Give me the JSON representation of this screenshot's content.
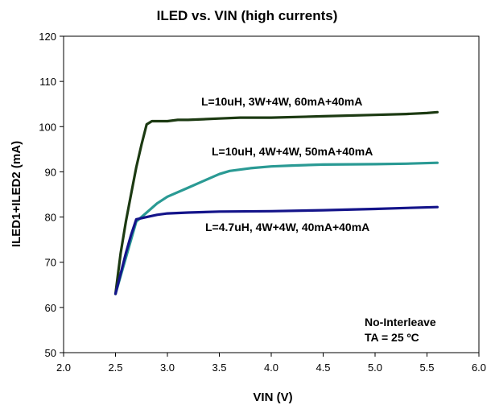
{
  "chart_data": {
    "type": "line",
    "title": "ILED vs. VIN (high currents)",
    "xlabel": "VIN (V)",
    "ylabel": "ILED1+ILED2 (mA)",
    "xlim": [
      2.0,
      6.0
    ],
    "ylim": [
      50,
      120
    ],
    "xticks": [
      "2.0",
      "2.5",
      "3.0",
      "3.5",
      "4.0",
      "4.5",
      "5.0",
      "5.5",
      "6.0"
    ],
    "yticks": [
      "50",
      "60",
      "70",
      "80",
      "90",
      "100",
      "110",
      "120"
    ],
    "grid": false,
    "series": [
      {
        "name": "L=10uH, 3W+4W, 60mA+40mA",
        "color": "#1c3a12",
        "x": [
          2.5,
          2.55,
          2.6,
          2.65,
          2.7,
          2.75,
          2.8,
          2.85,
          2.9,
          3.0,
          3.1,
          3.2,
          3.5,
          3.7,
          4.0,
          4.5,
          5.0,
          5.3,
          5.5,
          5.6
        ],
        "y": [
          63,
          72,
          79,
          85,
          91,
          96,
          100.5,
          101.2,
          101.2,
          101.2,
          101.5,
          101.5,
          101.8,
          102,
          102,
          102.3,
          102.6,
          102.8,
          103,
          103.2
        ]
      },
      {
        "name": "L=10uH, 4W+4W, 50mA+40mA",
        "color": "#2a9a94",
        "x": [
          2.5,
          2.6,
          2.7,
          2.8,
          2.9,
          3.0,
          3.2,
          3.4,
          3.5,
          3.6,
          3.8,
          4.0,
          4.2,
          4.5,
          5.0,
          5.3,
          5.6
        ],
        "y": [
          63,
          71,
          79,
          81,
          83,
          84.5,
          86.5,
          88.5,
          89.5,
          90.2,
          90.8,
          91.2,
          91.4,
          91.6,
          91.7,
          91.8,
          92
        ]
      },
      {
        "name": "L=4.7uH, 4W+4W, 40mA+40mA",
        "color": "#14148a",
        "x": [
          2.5,
          2.6,
          2.65,
          2.7,
          2.8,
          2.9,
          3.0,
          3.2,
          3.5,
          4.0,
          4.5,
          5.0,
          5.3,
          5.6
        ],
        "y": [
          63,
          72,
          76,
          79.5,
          80,
          80.5,
          80.8,
          81,
          81.2,
          81.3,
          81.5,
          81.8,
          82,
          82.2
        ]
      }
    ],
    "annotations": [
      "No-Interleave",
      "TA = 25 ºC"
    ]
  }
}
